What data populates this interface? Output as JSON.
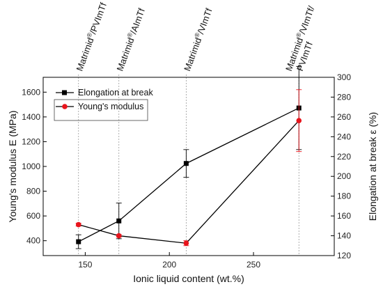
{
  "chart_data": {
    "type": "line",
    "xlabel": "Ionic liquid content (wt.%)",
    "ylabel_left": "Young's modulus E (MPa)",
    "ylabel_right": "Elongation at break ε (%)",
    "xlim": [
      125,
      298
    ],
    "ylim_left": [
      280,
      1720
    ],
    "ylim_right": [
      120,
      300
    ],
    "x_ticks": [
      150,
      200,
      250
    ],
    "y_left_ticks": [
      400,
      600,
      800,
      1000,
      1200,
      1400,
      1600
    ],
    "y_right_ticks": [
      120,
      140,
      160,
      180,
      200,
      220,
      240,
      260,
      280,
      300
    ],
    "grid": false,
    "legend_position": "top-left",
    "category_markers": [
      {
        "x": 146,
        "label": "Matrimid®/PVImTf",
        "lines": [
          "Matrimid®/PVImTf"
        ]
      },
      {
        "x": 170,
        "label": "Matrimid®/AImTf",
        "lines": [
          "Matrimid®/AImTf"
        ]
      },
      {
        "x": 210,
        "label": "Matrimid®/VImTf",
        "lines": [
          "Matrimid®/VImTf"
        ]
      },
      {
        "x": 277,
        "label": "Matrimid®/VImTf/PVImTf",
        "lines": [
          "Matrimid®/VImTf/",
          "PVImTf"
        ]
      }
    ],
    "series": [
      {
        "name": "Elongation at break",
        "axis": "right",
        "color": "#000000",
        "marker": "square",
        "x": [
          146,
          170,
          210,
          277
        ],
        "y": [
          134,
          155,
          213,
          269
        ],
        "yerr": [
          7,
          18,
          14,
          42
        ]
      },
      {
        "name": "Young's modulus",
        "axis": "left",
        "color": "#e8141c",
        "marker": "circle",
        "x": [
          146,
          170,
          210,
          277
        ],
        "y": [
          530,
          440,
          380,
          1370
        ],
        "yerr": [
          12,
          10,
          20,
          250
        ]
      }
    ]
  }
}
